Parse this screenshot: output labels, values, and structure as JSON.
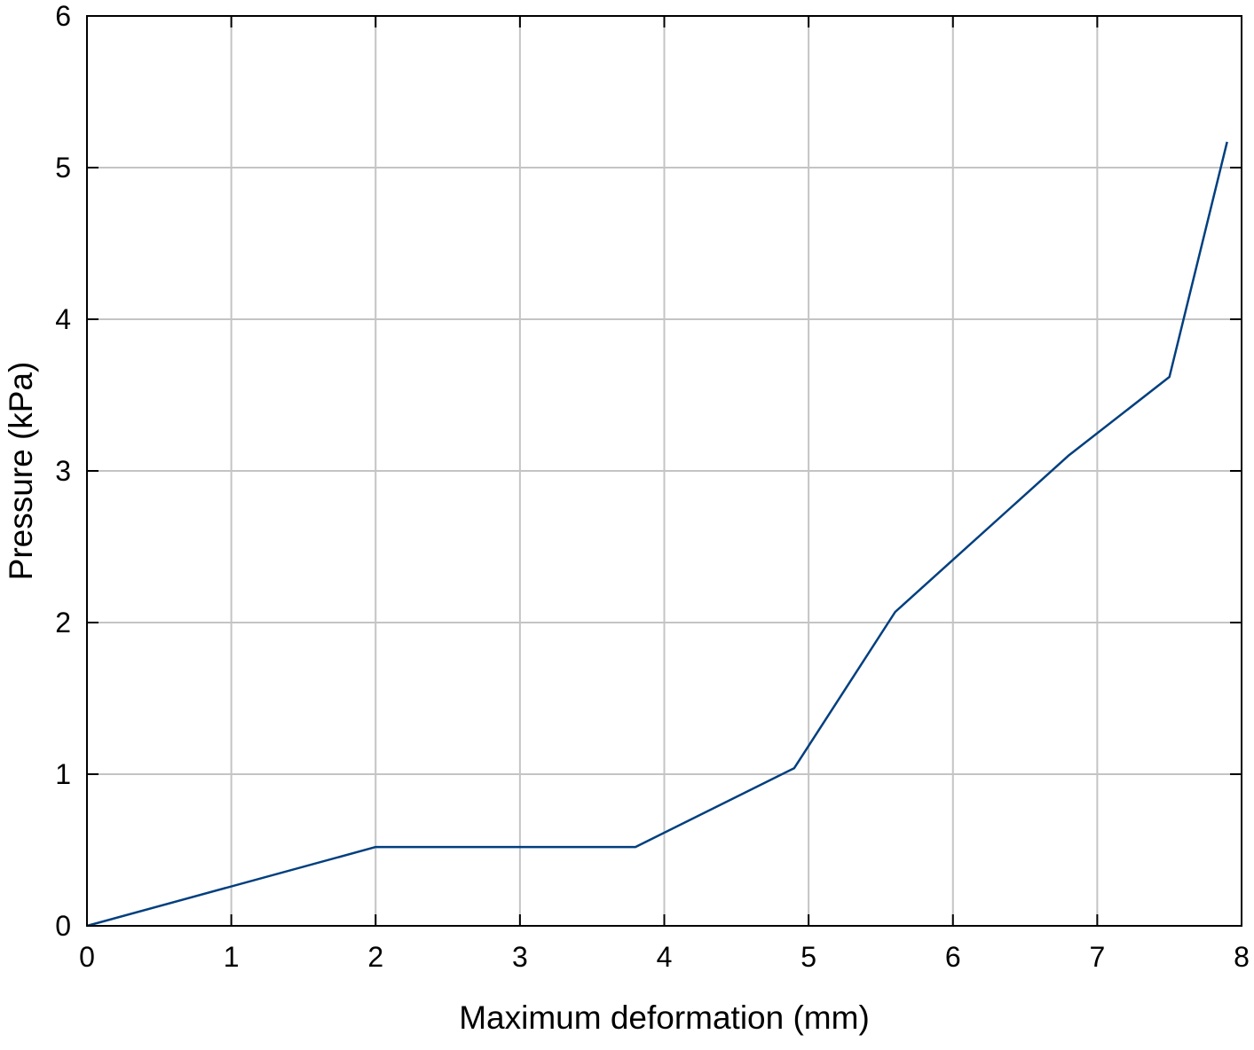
{
  "chart_data": {
    "type": "line",
    "title": "",
    "xlabel": "Maximum deformation (mm)",
    "ylabel": "Pressure (kPa)",
    "xlim": [
      0,
      8
    ],
    "ylim": [
      0,
      6
    ],
    "xticks": [
      0,
      1,
      2,
      3,
      4,
      5,
      6,
      7,
      8
    ],
    "yticks": [
      0,
      1,
      2,
      3,
      4,
      5,
      6
    ],
    "grid": true,
    "legend": "none",
    "series": [
      {
        "color": "#003f7f",
        "x": [
          0,
          2.0,
          3.8,
          4.9,
          5.6,
          6.8,
          7.5,
          7.9
        ],
        "y": [
          0,
          0.52,
          0.52,
          1.04,
          2.07,
          3.1,
          3.62,
          5.17
        ]
      }
    ]
  }
}
